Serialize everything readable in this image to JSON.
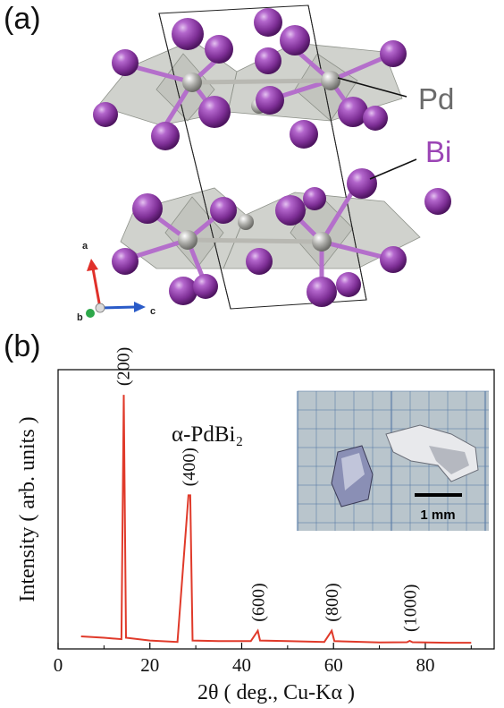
{
  "panel_a": {
    "label": "(a)",
    "atom_labels": {
      "pd": "Pd",
      "bi": "Bi"
    },
    "axis_labels": {
      "a": "a",
      "b": "b",
      "c": "c"
    },
    "colors": {
      "bi": "#8B3FA0",
      "pd": "#8A8A8A",
      "a_axis": "#E0302A",
      "b_axis": "#2DA84A",
      "c_axis": "#2A5BC8"
    }
  },
  "panel_b": {
    "label": "(b)",
    "inset": {
      "scale_bar_label": "1 mm"
    }
  },
  "chart_data": {
    "type": "line",
    "title": "α-PdBi₂",
    "xlabel": "2θ ( deg., Cu-Kα )",
    "ylabel": "Intensity ( arb. units )",
    "xlim": [
      0,
      95
    ],
    "ylim": [
      0,
      100
    ],
    "xticks": [
      0,
      20,
      40,
      60,
      80
    ],
    "yticks": [],
    "series": [
      {
        "color": "#E03A2A",
        "x": [
          5,
          10,
          13.8,
          14.3,
          14.8,
          20,
          26,
          28.4,
          28.8,
          29.3,
          35,
          42,
          43.5,
          44,
          50,
          58,
          59.6,
          60.2,
          70,
          76,
          76.6,
          77.2,
          85,
          90
        ],
        "values": [
          4.5,
          4,
          3.5,
          91,
          4,
          3,
          2.5,
          55,
          55,
          3,
          2.8,
          2.8,
          6.5,
          3,
          2.8,
          2.5,
          6.5,
          2.8,
          2.3,
          2.4,
          2.9,
          2.4,
          2.2,
          2.2
        ]
      }
    ],
    "annotations": [
      {
        "text": "(200)",
        "x": 14.3
      },
      {
        "text": "(400)",
        "x": 28.6
      },
      {
        "text": "(600)",
        "x": 43.7
      },
      {
        "text": "(800)",
        "x": 59.8
      },
      {
        "text": "(1000)",
        "x": 76.8
      }
    ]
  }
}
